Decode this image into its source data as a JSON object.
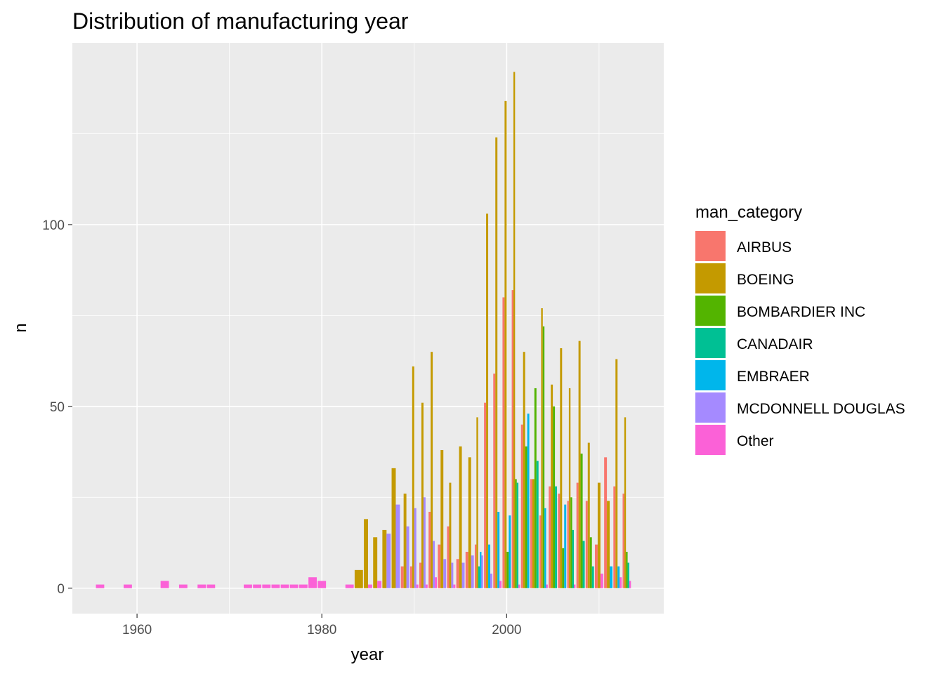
{
  "chart_data": {
    "type": "bar",
    "title": "Distribution of manufacturing year",
    "xlabel": "year",
    "ylabel": "n",
    "xlim": [
      1953,
      2017
    ],
    "ylim": [
      -7,
      150
    ],
    "x_ticks": [
      1960,
      1980,
      2000
    ],
    "y_ticks": [
      0,
      50,
      100
    ],
    "grid": true,
    "background": "#ebebeb",
    "legend": {
      "title": "man_category",
      "placement": "right",
      "items": [
        {
          "label": "AIRBUS",
          "color": "#F8766D"
        },
        {
          "label": "BOEING",
          "color": "#C49A00"
        },
        {
          "label": "BOMBARDIER INC",
          "color": "#53B400"
        },
        {
          "label": "CANADAIR",
          "color": "#00C094"
        },
        {
          "label": "EMBRAER",
          "color": "#00B6EB"
        },
        {
          "label": "MCDONNELL DOUGLAS",
          "color": "#A58AFF"
        },
        {
          "label": "Other",
          "color": "#FB61D7"
        }
      ]
    },
    "series": [
      {
        "name": "AIRBUS",
        "values": [
          [
            1989,
            6
          ],
          [
            1990,
            6
          ],
          [
            1991,
            7
          ],
          [
            1992,
            21
          ],
          [
            1993,
            12
          ],
          [
            1994,
            17
          ],
          [
            1995,
            8
          ],
          [
            1996,
            10
          ],
          [
            1997,
            12
          ],
          [
            1998,
            51
          ],
          [
            1999,
            59
          ],
          [
            2000,
            80
          ],
          [
            2001,
            82
          ],
          [
            2002,
            45
          ],
          [
            2003,
            30
          ],
          [
            2004,
            20
          ],
          [
            2005,
            28
          ],
          [
            2006,
            26
          ],
          [
            2007,
            24
          ],
          [
            2008,
            29
          ],
          [
            2009,
            24
          ],
          [
            2010,
            12
          ],
          [
            2011,
            36
          ],
          [
            2012,
            28
          ],
          [
            2013,
            26
          ]
        ]
      },
      {
        "name": "BOEING",
        "values": [
          [
            1984,
            5
          ],
          [
            1985,
            19
          ],
          [
            1986,
            14
          ],
          [
            1987,
            16
          ],
          [
            1988,
            33
          ],
          [
            1989,
            26
          ],
          [
            1990,
            61
          ],
          [
            1991,
            51
          ],
          [
            1992,
            65
          ],
          [
            1993,
            38
          ],
          [
            1994,
            29
          ],
          [
            1995,
            39
          ],
          [
            1996,
            36
          ],
          [
            1997,
            47
          ],
          [
            1998,
            103
          ],
          [
            1999,
            124
          ],
          [
            2000,
            134
          ],
          [
            2001,
            142
          ],
          [
            2002,
            65
          ],
          [
            2003,
            30
          ],
          [
            2004,
            77
          ],
          [
            2005,
            56
          ],
          [
            2006,
            66
          ],
          [
            2007,
            55
          ],
          [
            2008,
            68
          ],
          [
            2009,
            40
          ],
          [
            2010,
            29
          ],
          [
            2011,
            24
          ],
          [
            2012,
            63
          ],
          [
            2013,
            47
          ]
        ]
      },
      {
        "name": "BOMBARDIER INC",
        "values": [
          [
            2000,
            10
          ],
          [
            2001,
            30
          ],
          [
            2002,
            39
          ],
          [
            2003,
            55
          ],
          [
            2004,
            72
          ],
          [
            2005,
            50
          ],
          [
            2006,
            11
          ],
          [
            2007,
            25
          ],
          [
            2008,
            37
          ],
          [
            2009,
            14
          ],
          [
            2013,
            10
          ]
        ]
      },
      {
        "name": "CANADAIR",
        "values": [
          [
            1997,
            6
          ],
          [
            2001,
            29
          ],
          [
            2003,
            35
          ],
          [
            2005,
            28
          ],
          [
            2007,
            16
          ],
          [
            2008,
            13
          ],
          [
            2009,
            6
          ],
          [
            2013,
            7
          ]
        ]
      },
      {
        "name": "EMBRAER",
        "values": [
          [
            1997,
            10
          ],
          [
            1998,
            12
          ],
          [
            1999,
            21
          ],
          [
            2000,
            20
          ],
          [
            2002,
            48
          ],
          [
            2004,
            22
          ],
          [
            2006,
            23
          ],
          [
            2011,
            6
          ],
          [
            2012,
            6
          ]
        ]
      },
      {
        "name": "MCDONNELL DOUGLAS",
        "values": [
          [
            1987,
            15
          ],
          [
            1988,
            23
          ],
          [
            1989,
            17
          ],
          [
            1990,
            22
          ],
          [
            1991,
            25
          ],
          [
            1992,
            13
          ],
          [
            1993,
            8
          ],
          [
            1994,
            7
          ],
          [
            1995,
            7
          ],
          [
            1996,
            9
          ],
          [
            1997,
            9
          ],
          [
            1998,
            4
          ]
        ]
      },
      {
        "name": "Other",
        "values": [
          [
            1956,
            1
          ],
          [
            1959,
            1
          ],
          [
            1963,
            2
          ],
          [
            1965,
            1
          ],
          [
            1967,
            1
          ],
          [
            1968,
            1
          ],
          [
            1972,
            1
          ],
          [
            1973,
            1
          ],
          [
            1974,
            1
          ],
          [
            1975,
            1
          ],
          [
            1976,
            1
          ],
          [
            1977,
            1
          ],
          [
            1978,
            1
          ],
          [
            1979,
            3
          ],
          [
            1980,
            2
          ],
          [
            1983,
            1
          ],
          [
            1985,
            1
          ],
          [
            1986,
            2
          ],
          [
            1990,
            1
          ],
          [
            1991,
            1
          ],
          [
            1992,
            3
          ],
          [
            1994,
            1
          ],
          [
            1999,
            2
          ],
          [
            2001,
            1
          ],
          [
            2004,
            1
          ],
          [
            2007,
            1
          ],
          [
            2010,
            4
          ],
          [
            2012,
            3
          ],
          [
            2013,
            2
          ]
        ]
      }
    ]
  }
}
